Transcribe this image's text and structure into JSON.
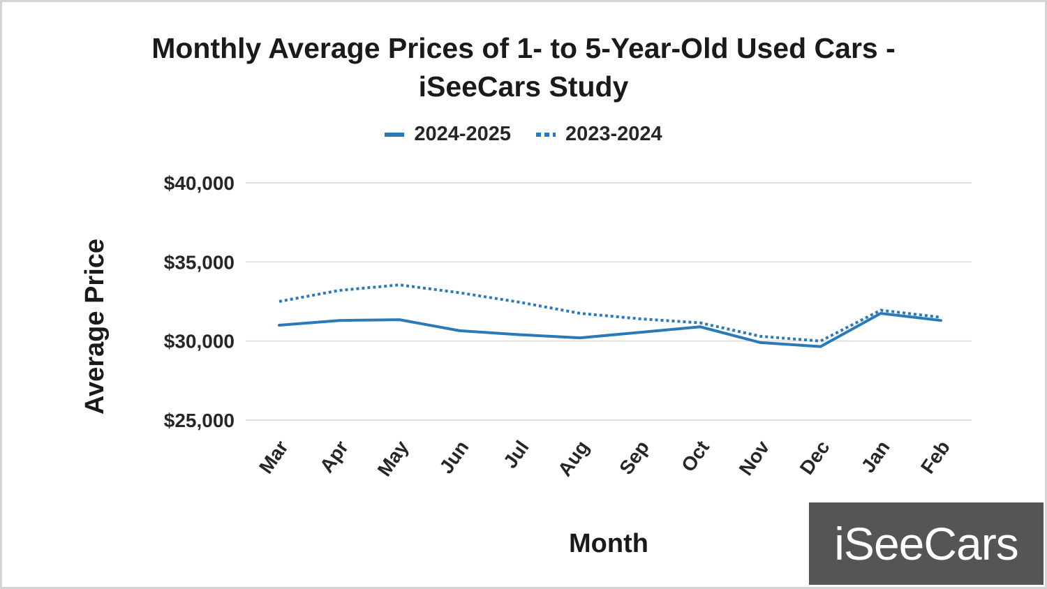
{
  "chart_data": {
    "type": "line",
    "title": "Monthly Average Prices of 1- to 5-Year-Old Used Cars - iSeeCars Study",
    "title_lines": [
      "Monthly Average Prices of 1- to 5-Year-Old Used Cars -",
      "iSeeCars Study"
    ],
    "xlabel": "Month",
    "ylabel": "Average Price",
    "categories": [
      "Mar",
      "Apr",
      "May",
      "Jun",
      "Jul",
      "Aug",
      "Sep",
      "Oct",
      "Nov",
      "Dec",
      "Jan",
      "Feb"
    ],
    "ylim": [
      25000,
      40000
    ],
    "yticks": [
      25000,
      30000,
      35000,
      40000
    ],
    "ytick_labels": [
      "$25,000",
      "$30,000",
      "$35,000",
      "$40,000"
    ],
    "grid": true,
    "legend_position": "top-center",
    "series": [
      {
        "name": "2024-2025",
        "style": "solid",
        "color": "#2a7ab8",
        "values": [
          31000,
          31300,
          31350,
          30650,
          30400,
          30200,
          30550,
          30900,
          29900,
          29650,
          31750,
          31300
        ]
      },
      {
        "name": "2023-2024",
        "style": "dotted",
        "color": "#2a7ab8",
        "values": [
          32500,
          33200,
          33550,
          33050,
          32450,
          31750,
          31400,
          31150,
          30300,
          30000,
          31950,
          31500
        ]
      }
    ]
  },
  "logo": {
    "text": "iSeeCars"
  }
}
